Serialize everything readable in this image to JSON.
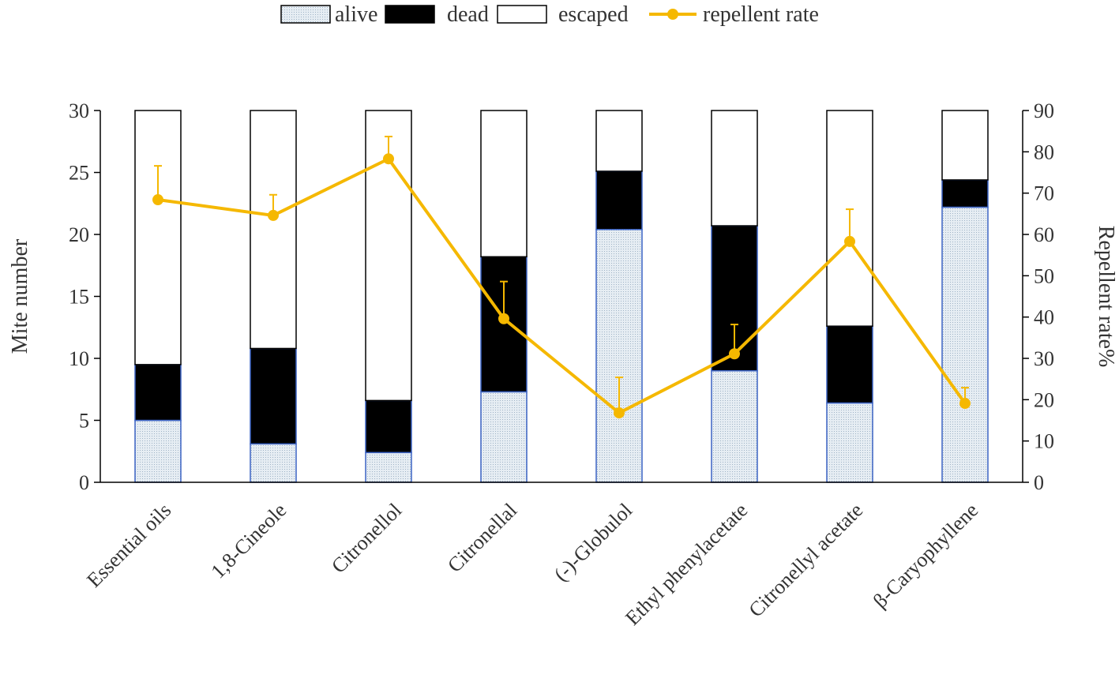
{
  "chart_data": {
    "type": "bar",
    "subtype": "stacked-bar-with-line",
    "categories": [
      "Essential oils",
      "1,8-Cineole",
      "Citronellol",
      "Citronellal",
      "(-)-Globulol",
      "Ethyl phenylacetate",
      "Citronellyl acetate",
      "β-Caryophyllene"
    ],
    "series": [
      {
        "name": "alive",
        "axis": "left",
        "values": [
          5.0,
          3.1,
          2.4,
          7.3,
          20.4,
          9.0,
          6.4,
          22.2
        ]
      },
      {
        "name": "dead",
        "axis": "left",
        "values": [
          4.5,
          7.7,
          4.2,
          10.9,
          4.7,
          11.7,
          6.2,
          2.2
        ]
      },
      {
        "name": "escaped",
        "axis": "left",
        "values": [
          20.5,
          19.2,
          23.4,
          11.8,
          4.9,
          9.3,
          17.4,
          5.6
        ]
      },
      {
        "name": "repellent rate",
        "axis": "right",
        "type": "line",
        "values": [
          68.4,
          64.6,
          78.3,
          39.6,
          16.8,
          31.1,
          58.3,
          19.1
        ],
        "errors": [
          8.2,
          5.0,
          5.4,
          9.0,
          8.6,
          7.1,
          7.8,
          3.8
        ]
      }
    ],
    "ylabel": "Mite number",
    "y2label": "Repellent rate%",
    "ylim": [
      0,
      30
    ],
    "y2lim": [
      0,
      90
    ],
    "yticks": [
      0,
      5,
      10,
      15,
      20,
      25,
      30
    ],
    "y2ticks": [
      0,
      10,
      20,
      30,
      40,
      50,
      60,
      70,
      80,
      90
    ],
    "legend": {
      "placement": "top-center",
      "entries": [
        "alive",
        "dead",
        "escaped",
        "repellent rate"
      ]
    },
    "grid": false,
    "colors": {
      "alive": "#dde6ee",
      "dead": "#000000",
      "escaped": "#ffffff",
      "outline": "#3b63c4",
      "line": "#f5b800"
    }
  }
}
